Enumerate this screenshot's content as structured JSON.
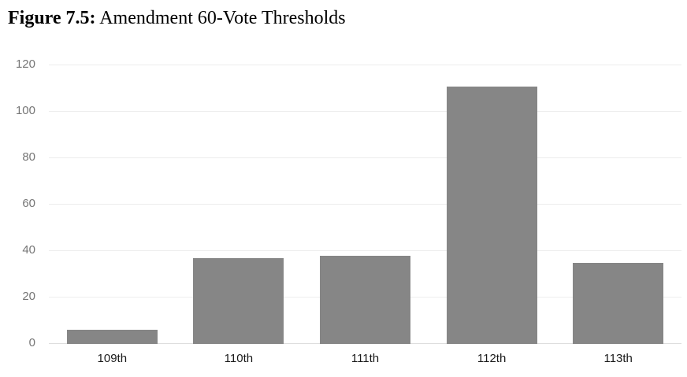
{
  "figure": {
    "label": "Figure 7.5:",
    "title": " Amendment 60-Vote Thresholds"
  },
  "chart_data": {
    "type": "bar",
    "title": "Figure 7.5: Amendment 60-Vote Thresholds",
    "categories": [
      "109th",
      "110th",
      "111th",
      "112th",
      "113th"
    ],
    "values": [
      6,
      37,
      38,
      111,
      35
    ],
    "xlabel": "",
    "ylabel": "",
    "ylim": [
      0,
      120
    ],
    "yticks": [
      0,
      20,
      40,
      60,
      80,
      100,
      120
    ],
    "grid": true,
    "legend": false,
    "colors": {
      "bar": "#868686",
      "gridline": "#ededed",
      "axis_line": "#dedede",
      "ytick_label": "#757575",
      "xtick_label": "#1a1a1a",
      "title_text": "#000000",
      "background": "#ffffff"
    }
  }
}
